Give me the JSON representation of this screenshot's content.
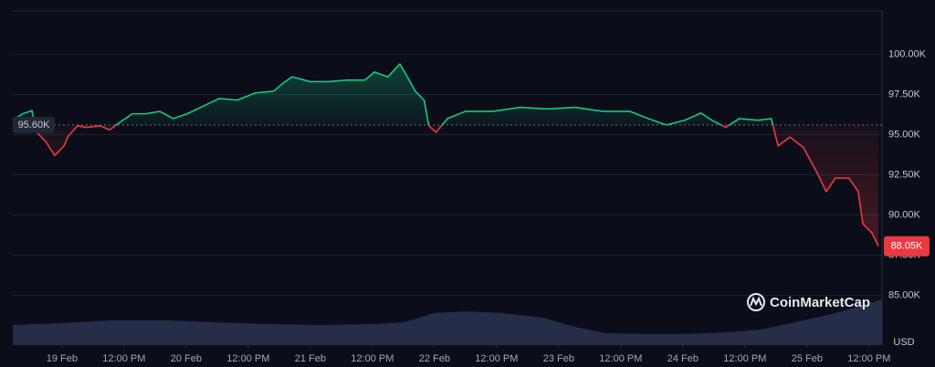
{
  "chart_data": {
    "type": "line",
    "x": [
      -9.5,
      -7.6,
      -5.8,
      -4.9,
      -3.2,
      -1.4,
      0.4,
      1.2,
      3,
      4.8,
      7.4,
      9.2,
      10.9,
      13.6,
      16.2,
      18.9,
      21.5,
      24.2,
      26.8,
      30.4,
      33.9,
      37.4,
      40.9,
      42.7,
      44.5,
      48,
      51.5,
      55.1,
      58.6,
      60.4,
      63,
      65.3,
      66.5,
      68.3,
      70,
      70.9,
      72.3,
      74.5,
      78,
      83.3,
      88.6,
      93.9,
      99.2,
      104.5,
      109.8,
      113.3,
      116.8,
      120.4,
      123.5,
      125.6,
      128.3,
      130.9,
      134.5,
      137.1,
      138.4,
      140.7,
      143.3,
      146,
      147.7,
      149.5,
      152.1,
      153.9,
      154.8,
      156.5,
      157.8
    ],
    "series": [
      {
        "color": "#16c784",
        "values": [
          95.9,
          96.3,
          96.5,
          95.15,
          94.6,
          93.7,
          94.3,
          94.9,
          95.55,
          95.45,
          95.55,
          95.3,
          95.7,
          96.3,
          96.3,
          96.45,
          96.0,
          96.3,
          96.7,
          97.25,
          97.15,
          97.6,
          97.7,
          98.2,
          98.6,
          98.3,
          98.3,
          98.4,
          98.4,
          98.9,
          98.6,
          99.4,
          98.75,
          97.7,
          97.15,
          95.55,
          95.15,
          96.0,
          96.45,
          96.45,
          96.7,
          96.6,
          96.7,
          96.45,
          96.45,
          96.0,
          95.6,
          95.9,
          96.35,
          95.9,
          95.45,
          96.0,
          95.9,
          96.0,
          94.3,
          94.85,
          94.2,
          92.6,
          91.45,
          92.3,
          92.3,
          91.45,
          89.45,
          88.9,
          88.05
        ]
      }
    ],
    "below_color": "#ea3943",
    "volume": {
      "axis": "y2",
      "color": "#2a3352",
      "x": [
        -9.5,
        0,
        10,
        20,
        30,
        40,
        50,
        60,
        66,
        72,
        78,
        85,
        93,
        99,
        105,
        112,
        120,
        128,
        135,
        140,
        148,
        154,
        158.5
      ],
      "values": [
        6,
        6.6,
        7.4,
        7.4,
        6.8,
        6.3,
        6,
        6.3,
        6.8,
        9.6,
        10.1,
        9.6,
        8.2,
        5.5,
        3.6,
        3.3,
        3.3,
        3.8,
        4.6,
        6.3,
        9,
        11.5,
        13.7
      ]
    },
    "baseline": {
      "value": 95.6,
      "label": "95.60K"
    },
    "current": {
      "value": 88.05,
      "label": "88.05K"
    },
    "xlim": [
      -9.5,
      158.5
    ],
    "ylim": [
      81.9,
      102.7
    ],
    "y2lim": [
      0,
      100
    ],
    "xticks": [
      {
        "value": 0,
        "label": "19 Feb"
      },
      {
        "value": 12,
        "label": "12:00 PM"
      },
      {
        "value": 24,
        "label": "20 Feb"
      },
      {
        "value": 36,
        "label": "12:00 PM"
      },
      {
        "value": 48,
        "label": "21 Feb"
      },
      {
        "value": 60,
        "label": "12:00 PM"
      },
      {
        "value": 72,
        "label": "22 Feb"
      },
      {
        "value": 84,
        "label": "12:00 PM"
      },
      {
        "value": 96,
        "label": "23 Feb"
      },
      {
        "value": 108,
        "label": "12:00 PM"
      },
      {
        "value": 120,
        "label": "24 Feb"
      },
      {
        "value": 132,
        "label": "12:00 PM"
      },
      {
        "value": 144,
        "label": "25 Feb"
      },
      {
        "value": 156,
        "label": "12:00 PM"
      }
    ],
    "yticks": [
      {
        "value": 85,
        "label": "85.00K"
      },
      {
        "value": 87.5,
        "label": "87.50K"
      },
      {
        "value": 90,
        "label": "90.00K"
      },
      {
        "value": 92.5,
        "label": "92.50K"
      },
      {
        "value": 95,
        "label": "95.00K"
      },
      {
        "value": 97.5,
        "label": "97.50K"
      },
      {
        "value": 100,
        "label": "100.00K"
      }
    ],
    "currency": "USD",
    "watermark": "CoinMarketCap",
    "grid": true
  }
}
